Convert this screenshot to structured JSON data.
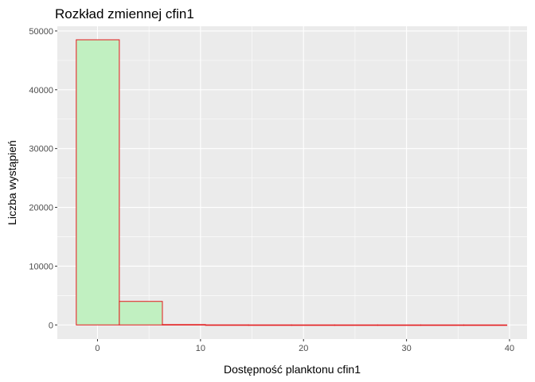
{
  "chart_data": {
    "type": "histogram",
    "title": "Rozkład zmiennej cfin1",
    "xlabel": "Dostępność planktonu cfin1",
    "ylabel": "Liczba wystąpień",
    "xlim": [
      -3.9,
      41.7
    ],
    "ylim": [
      -2400,
      50800
    ],
    "x_ticks": [
      0,
      10,
      20,
      30,
      40
    ],
    "y_ticks": [
      0,
      10000,
      20000,
      30000,
      40000,
      50000
    ],
    "bins": [
      {
        "x0": -2.06,
        "x1": 2.12,
        "count": 48500
      },
      {
        "x0": 2.12,
        "x1": 6.3,
        "count": 4000
      },
      {
        "x0": 6.3,
        "x1": 10.48,
        "count": 60
      },
      {
        "x0": 10.48,
        "x1": 14.66,
        "count": 10
      },
      {
        "x0": 14.66,
        "x1": 18.84,
        "count": 5
      },
      {
        "x0": 18.84,
        "x1": 23.02,
        "count": 3
      },
      {
        "x0": 23.02,
        "x1": 27.2,
        "count": 2
      },
      {
        "x0": 27.2,
        "x1": 31.38,
        "count": 1
      },
      {
        "x0": 31.38,
        "x1": 35.56,
        "count": 1
      },
      {
        "x0": 35.56,
        "x1": 39.74,
        "count": 1
      }
    ],
    "fill_color": "#c1f0c1",
    "stroke_color": "#e31a1c",
    "panel_color": "#ebebeb",
    "grid_color": "#ffffff"
  }
}
